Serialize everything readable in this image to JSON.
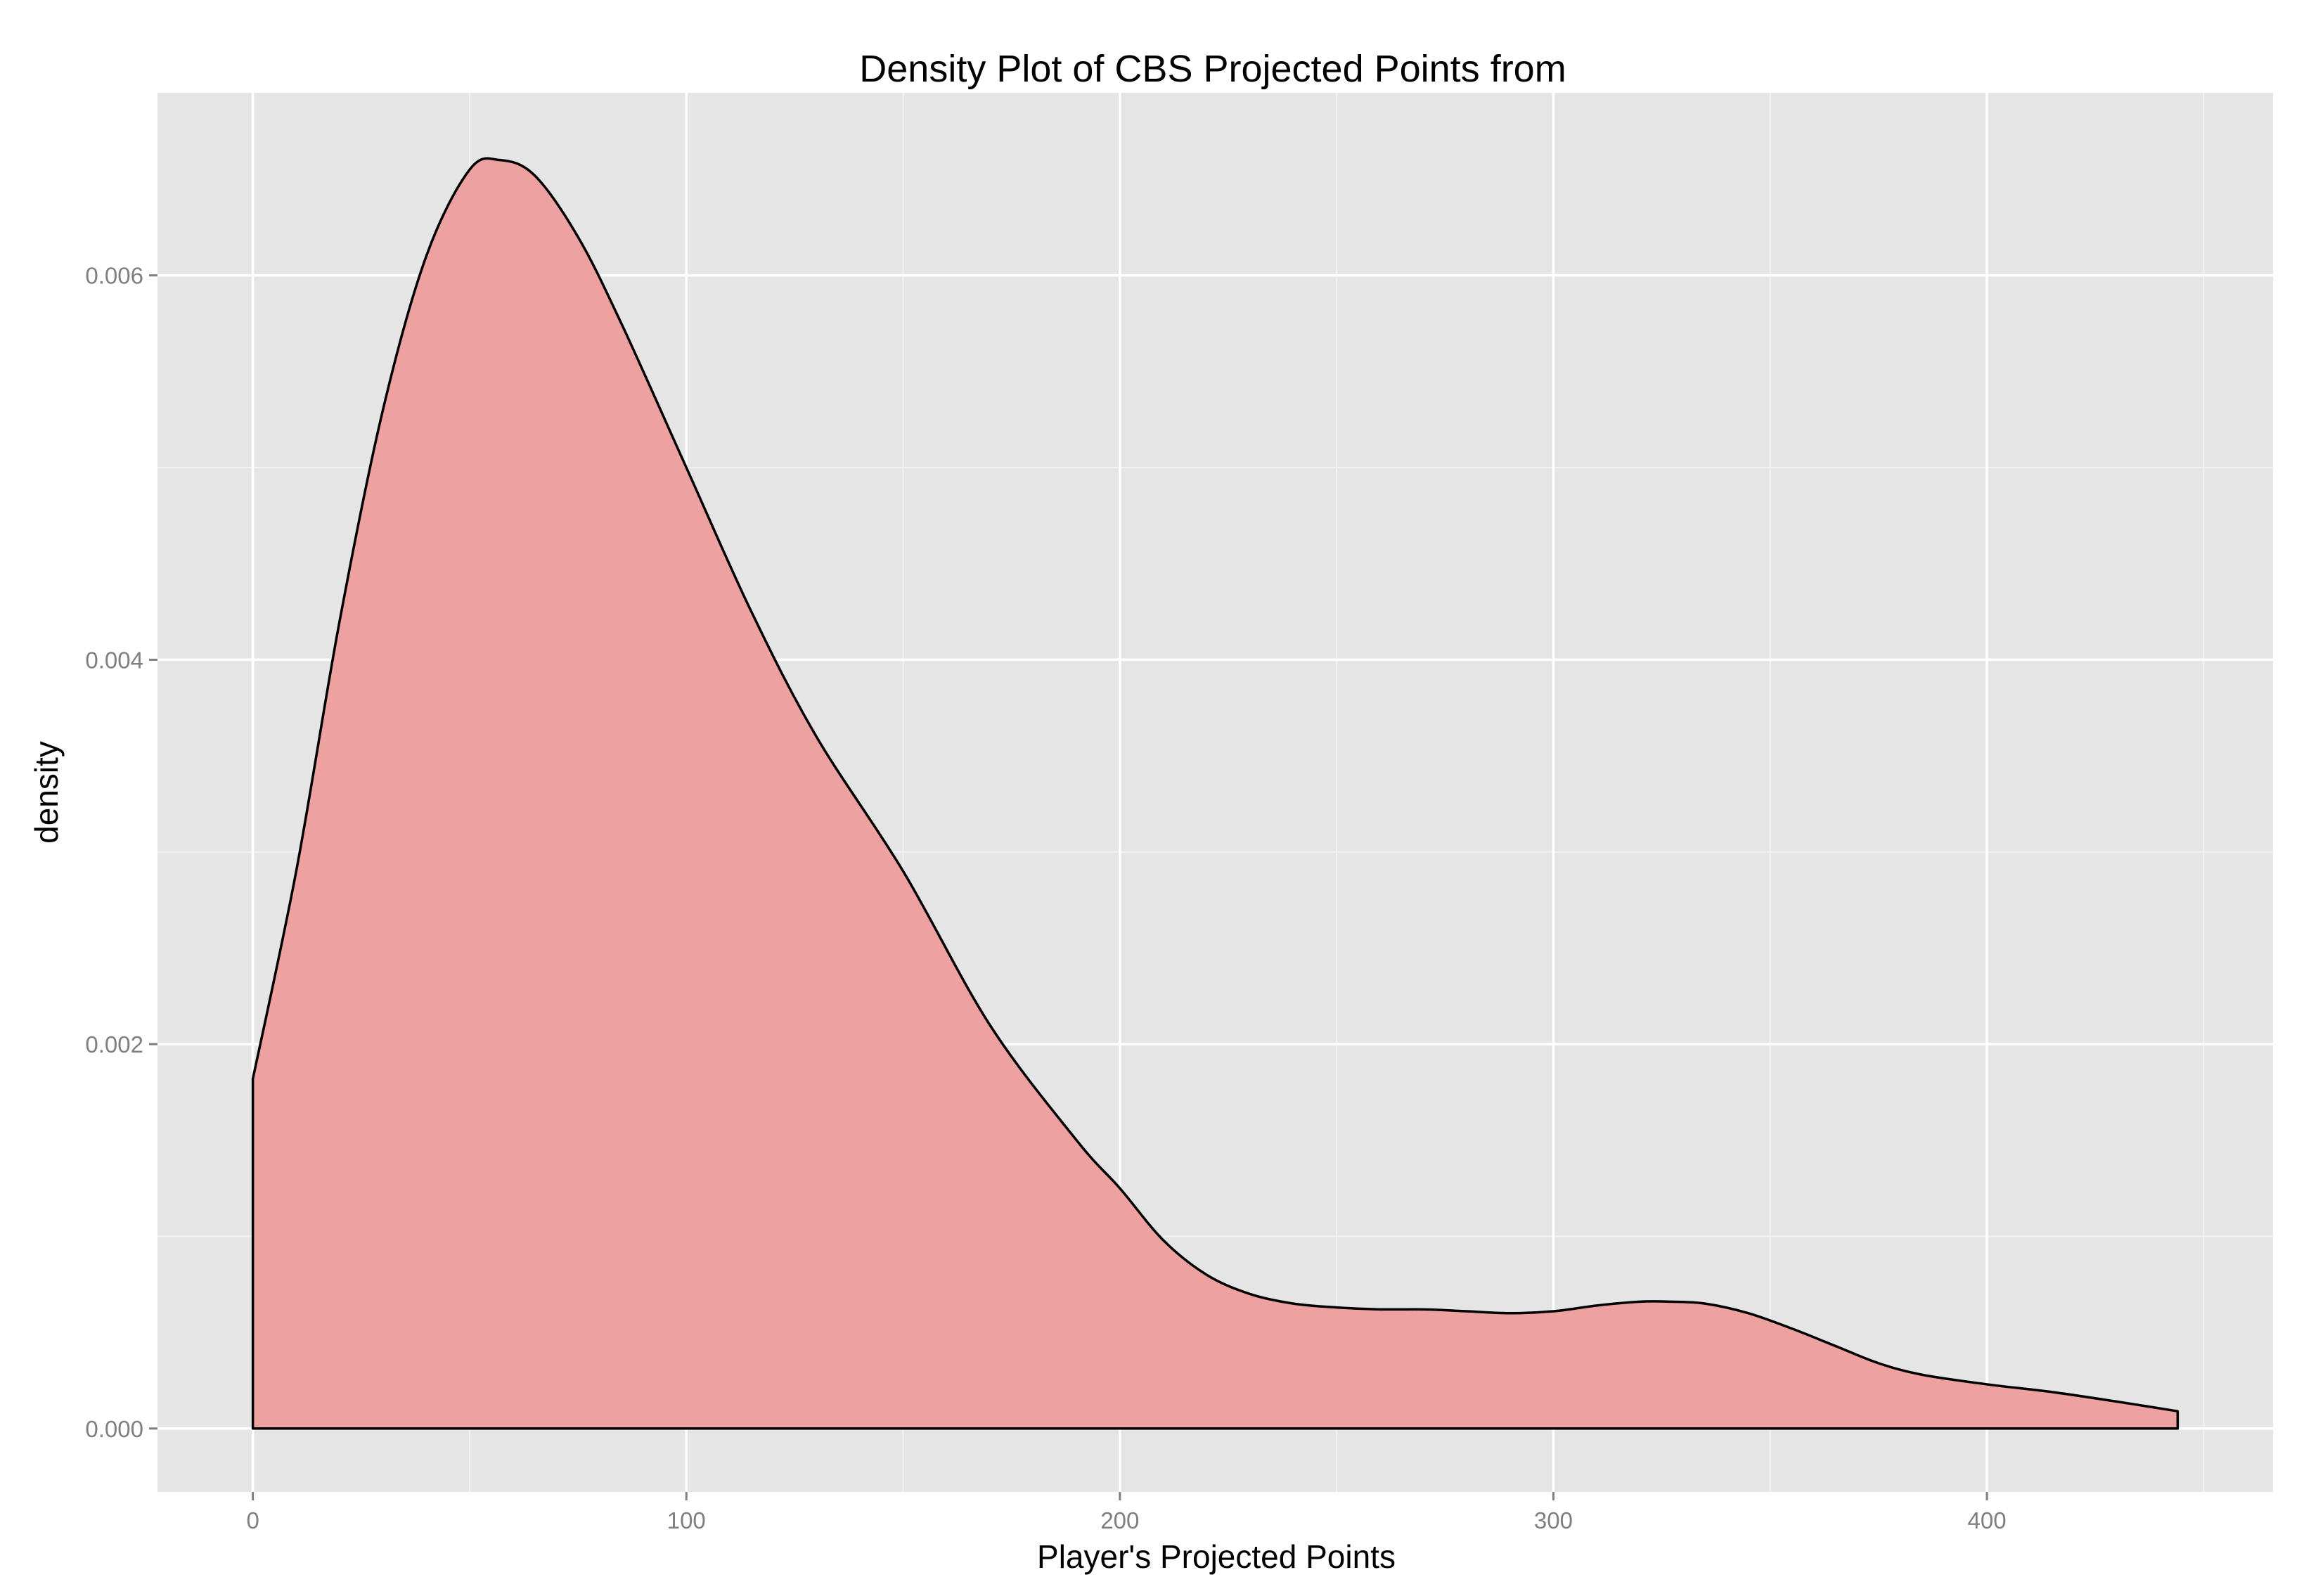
{
  "chart_data": {
    "type": "area",
    "title": "Density Plot of CBS Projected Points from",
    "xlabel": "Player's Projected Points",
    "ylabel": "density",
    "xlim": [
      -22,
      466
    ],
    "ylim": [
      -0.00033,
      0.00695
    ],
    "x_ticks": [
      0,
      100,
      200,
      300,
      400
    ],
    "x_tick_labels": [
      "0",
      "100",
      "200",
      "300",
      "400"
    ],
    "y_ticks": [
      0.0,
      0.002,
      0.004,
      0.006
    ],
    "y_tick_labels": [
      "0.000",
      "0.002",
      "0.004",
      "0.006"
    ],
    "grid": true,
    "legend": "none",
    "colors": {
      "panel_background": "#e5e5e5",
      "grid_major": "#ffffff",
      "grid_minor": "#f2f2f2",
      "fill": "#eda1a1",
      "outline": "#000000"
    },
    "series": [
      {
        "x": [
          0,
          10,
          20,
          30,
          40,
          50,
          57,
          65,
          75,
          85,
          100,
          115,
          130,
          150,
          170,
          190,
          200,
          210,
          220,
          230,
          240,
          250,
          260,
          270,
          280,
          290,
          300,
          310,
          320,
          327,
          335,
          345,
          355,
          365,
          375,
          385,
          400,
          415,
          430,
          444
        ],
        "y": [
          0.00182,
          0.0029,
          0.0042,
          0.0053,
          0.0061,
          0.00655,
          0.0066,
          0.00652,
          0.0062,
          0.00575,
          0.005,
          0.00425,
          0.0036,
          0.0029,
          0.0021,
          0.0015,
          0.00125,
          0.00098,
          0.0008,
          0.0007,
          0.00065,
          0.00063,
          0.00062,
          0.00062,
          0.00061,
          0.0006,
          0.00061,
          0.00064,
          0.00066,
          0.00066,
          0.00065,
          0.0006,
          0.00052,
          0.00043,
          0.00034,
          0.00028,
          0.00023,
          0.00019,
          0.00014,
          9e-05
        ]
      }
    ]
  }
}
